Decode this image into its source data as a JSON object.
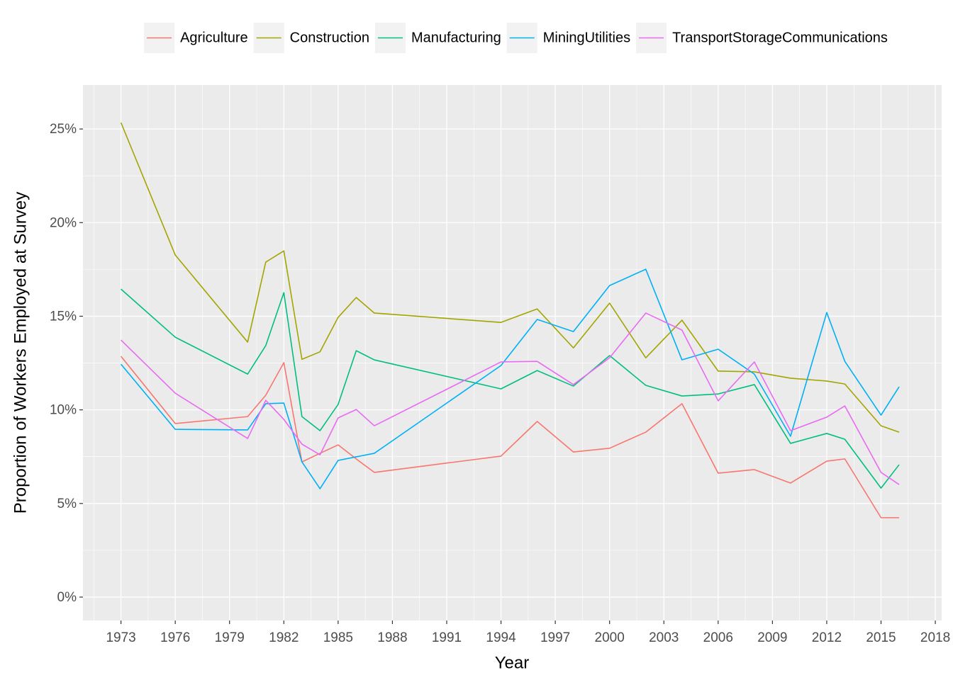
{
  "chart_data": {
    "type": "line",
    "x_label": "Year",
    "y_label": "Proportion of Workers Employed at Survey",
    "legend_position": "top",
    "grid": true,
    "x": [
      1973,
      1976,
      1980,
      1981,
      1982,
      1983,
      1984,
      1985,
      1986,
      1987,
      1994,
      1996,
      1998,
      2000,
      2002,
      2004,
      2006,
      2008,
      2010,
      2012,
      2013,
      2015,
      2016
    ],
    "series": [
      {
        "name": "Agriculture",
        "color": "#F8766D",
        "values": [
          12.86,
          9.27,
          9.64,
          10.78,
          12.52,
          7.22,
          7.68,
          8.13,
          7.38,
          6.66,
          7.53,
          9.38,
          7.75,
          7.95,
          8.81,
          10.33,
          6.62,
          6.81,
          6.09,
          7.26,
          7.38,
          4.24,
          4.24
        ]
      },
      {
        "name": "Construction",
        "color": "#A3A500",
        "values": [
          25.34,
          18.27,
          13.62,
          17.89,
          18.49,
          12.7,
          13.1,
          14.94,
          16.0,
          15.17,
          14.67,
          15.39,
          13.31,
          15.7,
          12.78,
          14.79,
          12.07,
          12.03,
          11.69,
          11.54,
          11.38,
          9.15,
          8.81
        ]
      },
      {
        "name": "Manufacturing",
        "color": "#00BF7D",
        "values": [
          16.45,
          13.88,
          11.91,
          13.43,
          16.26,
          9.64,
          8.89,
          10.29,
          13.16,
          12.67,
          11.12,
          12.1,
          11.27,
          12.9,
          11.31,
          10.74,
          10.85,
          11.35,
          8.21,
          8.74,
          8.43,
          5.82,
          7.07
        ]
      },
      {
        "name": "MiningUtilities",
        "color": "#00B0F6",
        "values": [
          12.44,
          8.96,
          8.93,
          10.33,
          10.36,
          7.22,
          5.79,
          7.3,
          7.49,
          7.68,
          12.37,
          14.83,
          14.18,
          16.64,
          17.51,
          12.67,
          13.24,
          11.91,
          8.59,
          15.2,
          12.59,
          9.72,
          11.23
        ]
      },
      {
        "name": "TransportStorageCommunications",
        "color": "#E76BF3",
        "values": [
          13.73,
          10.89,
          8.47,
          10.51,
          9.49,
          8.17,
          7.6,
          9.57,
          10.02,
          9.15,
          12.56,
          12.59,
          11.35,
          12.78,
          15.17,
          14.26,
          10.48,
          12.56,
          8.89,
          9.61,
          10.21,
          6.66,
          6.01
        ]
      }
    ],
    "xlim": [
      1970.9,
      2018.35
    ],
    "xticks": [
      1973,
      1976,
      1979,
      1982,
      1985,
      1988,
      1991,
      1994,
      1997,
      2000,
      2003,
      2006,
      2009,
      2012,
      2015,
      2018
    ],
    "ylim": [
      -1.25,
      27.35
    ],
    "yticks": [
      {
        "value": 0,
        "label": "0%"
      },
      {
        "value": 5,
        "label": "5%"
      },
      {
        "value": 10,
        "label": "10%"
      },
      {
        "value": 15,
        "label": "15%"
      },
      {
        "value": 20,
        "label": "20%"
      },
      {
        "value": 25,
        "label": "25%"
      }
    ]
  }
}
